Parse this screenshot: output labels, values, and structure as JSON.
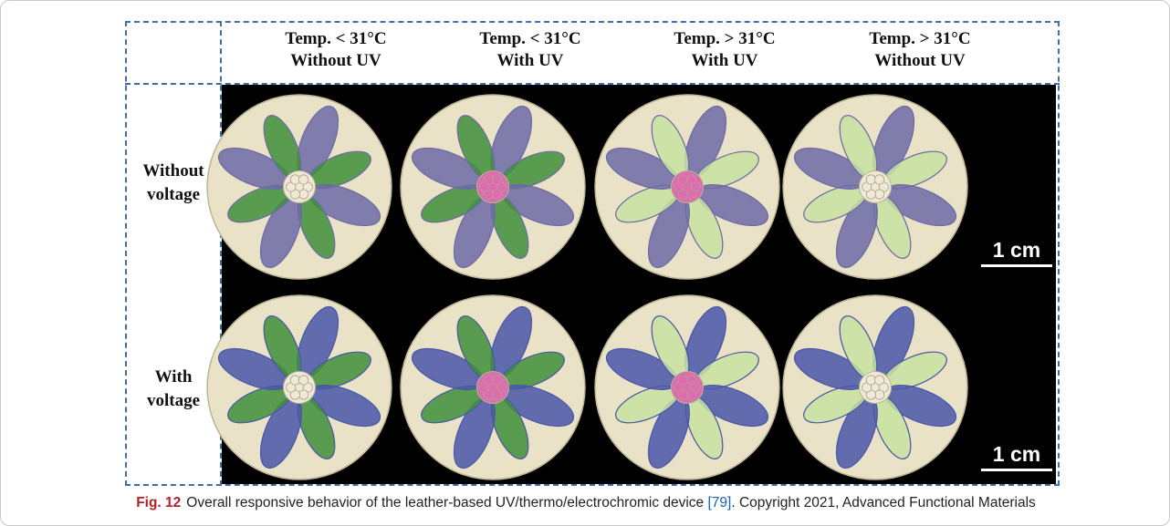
{
  "figure": {
    "column_headers": [
      {
        "line1": "Temp. < 31°C",
        "line2": "Without UV"
      },
      {
        "line1": "Temp. < 31°C",
        "line2": "With UV"
      },
      {
        "line1": "Temp. > 31°C",
        "line2": "With UV"
      },
      {
        "line1": "Temp. > 31°C",
        "line2": "Without UV"
      }
    ],
    "row_labels": [
      {
        "line1": "Without",
        "line2": "voltage"
      },
      {
        "line1": "With",
        "line2": "voltage"
      }
    ],
    "scale_bar_label": "1 cm",
    "samples": [
      {
        "row": 0,
        "col": 0,
        "petal_primary": "#3f8f3a",
        "petal_secondary": "#6d6aa6",
        "center": "#efe9d6"
      },
      {
        "row": 0,
        "col": 1,
        "petal_primary": "#3f8f3a",
        "petal_secondary": "#6d6aa6",
        "center": "#e06ab0"
      },
      {
        "row": 0,
        "col": 2,
        "petal_primary": "#c7e2a0",
        "petal_secondary": "#6d6aa6",
        "center": "#e06ab0"
      },
      {
        "row": 0,
        "col": 3,
        "petal_primary": "#c7e2a0",
        "petal_secondary": "#6d6aa6",
        "center": "#efe9d6"
      },
      {
        "row": 1,
        "col": 0,
        "petal_primary": "#3f8f3a",
        "petal_secondary": "#4a56a8",
        "center": "#efe9d6"
      },
      {
        "row": 1,
        "col": 1,
        "petal_primary": "#3f8f3a",
        "petal_secondary": "#4a56a8",
        "center": "#e06ab0"
      },
      {
        "row": 1,
        "col": 2,
        "petal_primary": "#c7e2a0",
        "petal_secondary": "#4a56a8",
        "center": "#e06ab0"
      },
      {
        "row": 1,
        "col": 3,
        "petal_primary": "#c7e2a0",
        "petal_secondary": "#4a56a8",
        "center": "#efe9d6"
      }
    ],
    "colors": {
      "frame_dash": "#3f6fa6",
      "disc_base": "#e9e2c6",
      "photo_bg": "#000000"
    }
  },
  "caption": {
    "label": "Fig. 12",
    "text_before_ref": "Overall responsive behavior of the leather-based UV/thermo/electrochromic device ",
    "ref": "[79]",
    "text_after_ref": ". Copyright 2021, Advanced Functional Materials"
  }
}
